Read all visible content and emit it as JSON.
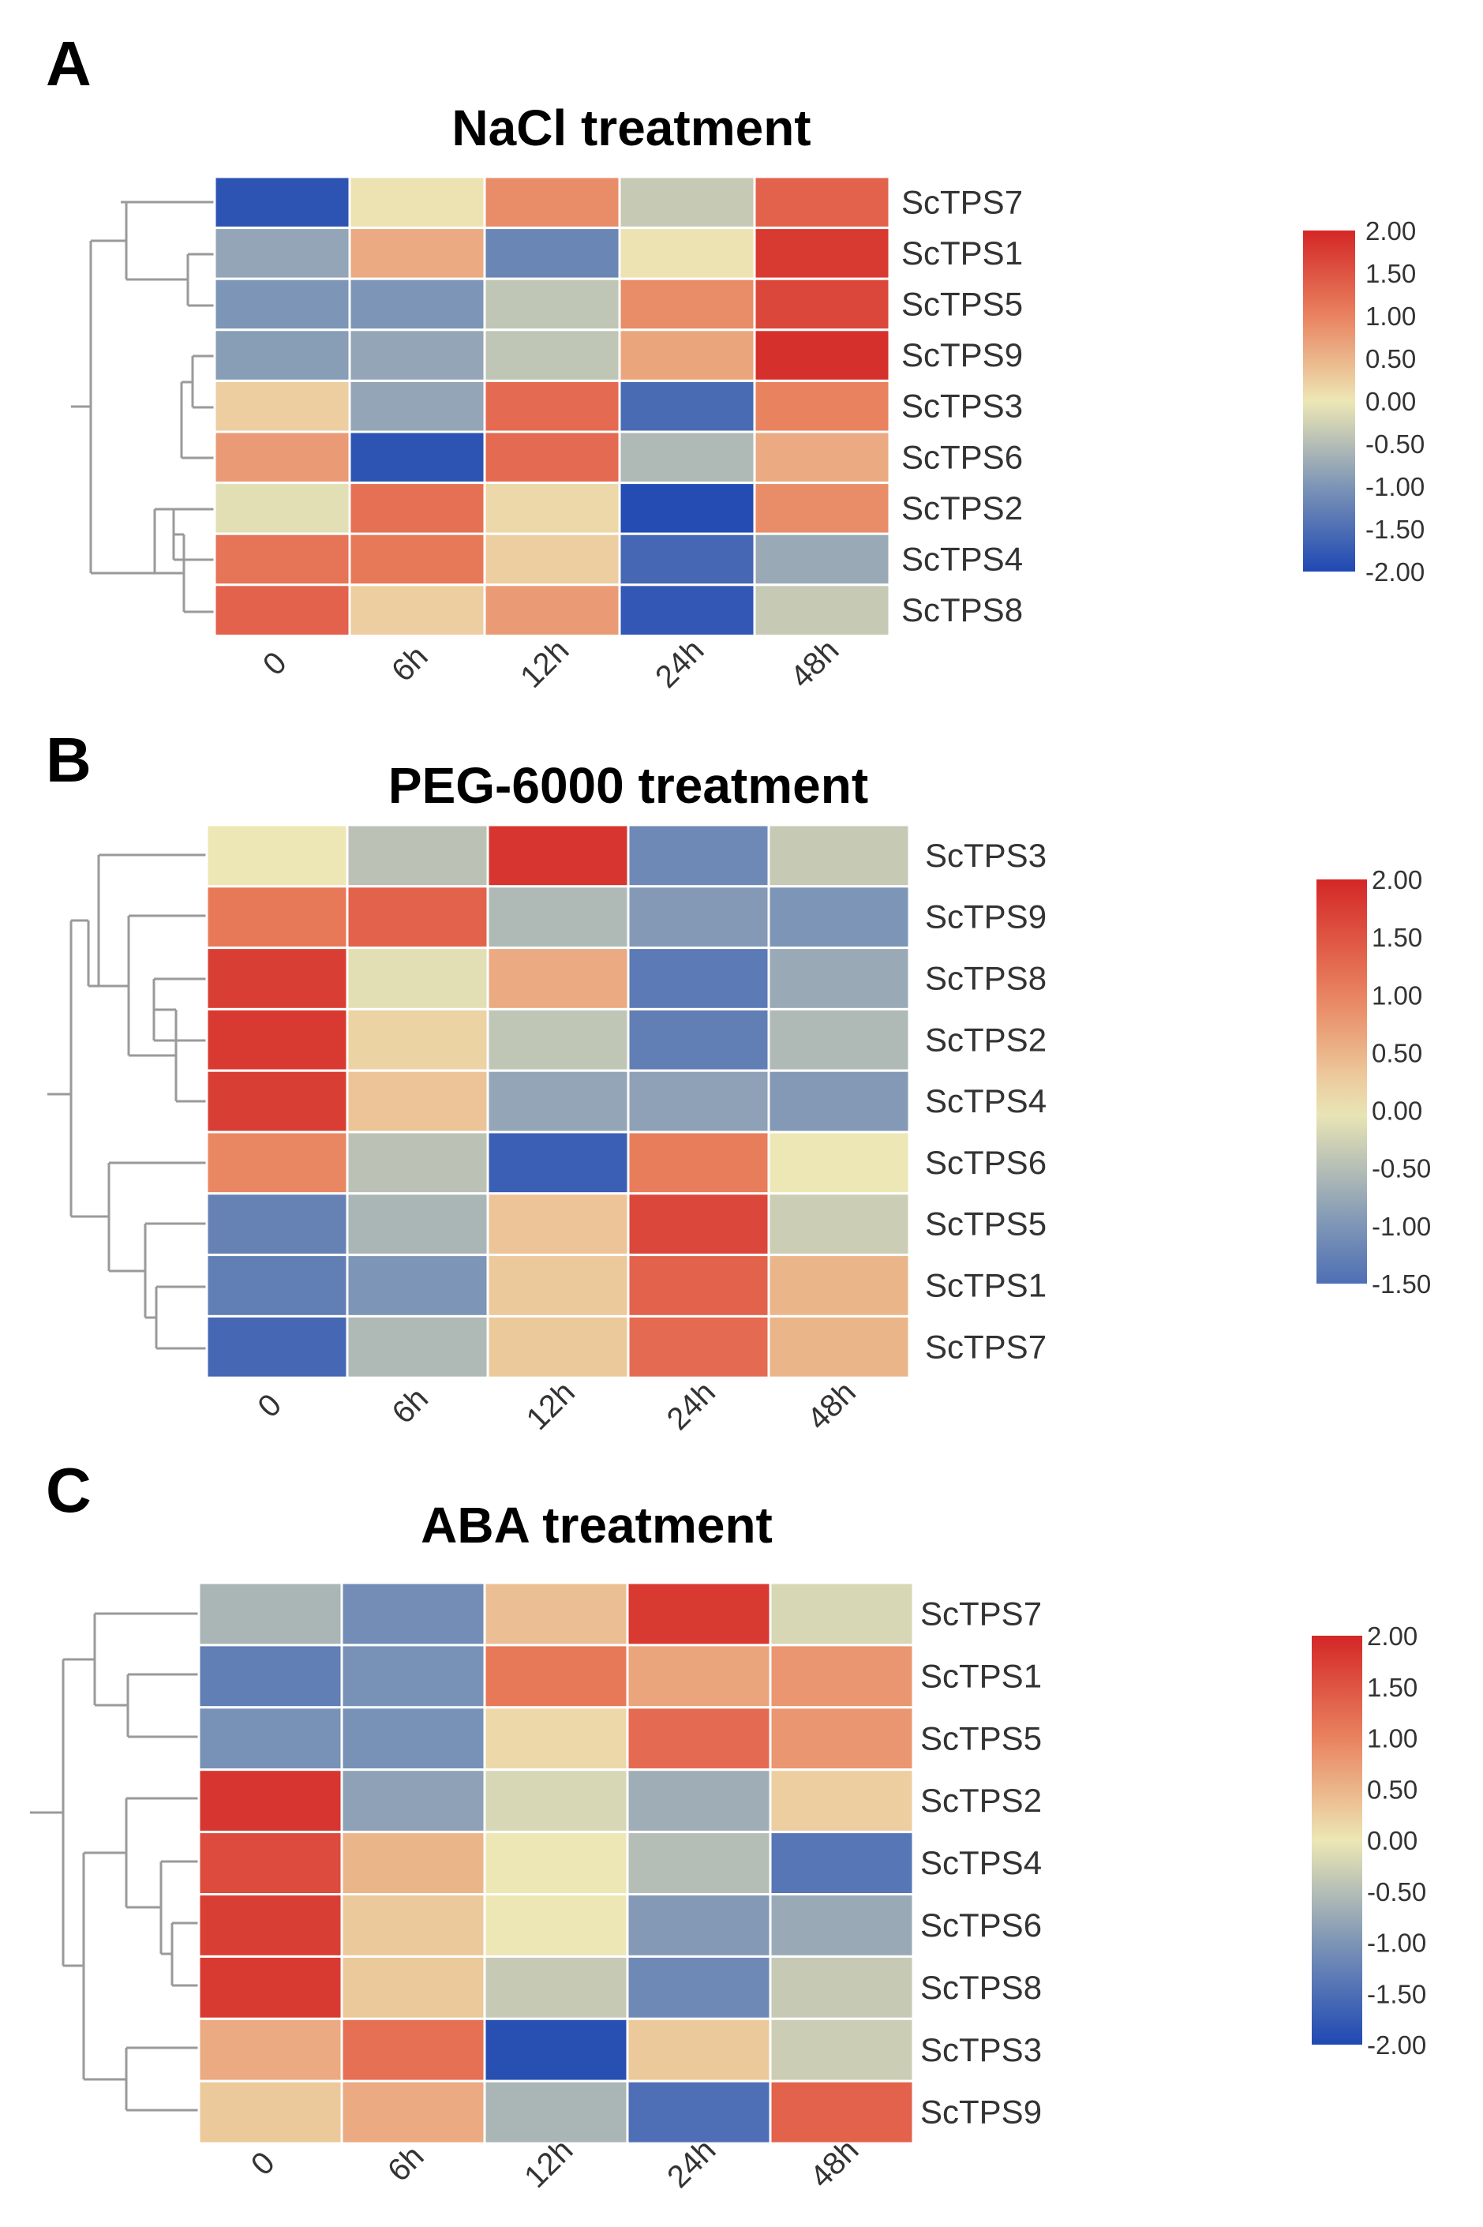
{
  "chart_data": [
    {
      "type": "heatmap",
      "panel": "A",
      "title": "NaCl treatment",
      "columns": [
        "0",
        "6h",
        "12h",
        "24h",
        "48h"
      ],
      "rows": [
        "ScTPS7",
        "ScTPS1",
        "ScTPS5",
        "ScTPS9",
        "ScTPS3",
        "ScTPS6",
        "ScTPS2",
        "ScTPS4",
        "ScTPS8"
      ],
      "values": [
        [
          -1.85,
          0.05,
          0.9,
          -0.35,
          1.35
        ],
        [
          -0.8,
          0.6,
          -1.2,
          0.05,
          1.8
        ],
        [
          -1.0,
          -1.0,
          -0.4,
          0.9,
          1.65
        ],
        [
          -0.9,
          -0.8,
          -0.4,
          0.65,
          1.9
        ],
        [
          0.25,
          -0.8,
          1.25,
          -1.55,
          1.0
        ],
        [
          0.75,
          -1.85,
          1.25,
          -0.55,
          0.6
        ],
        [
          -0.1,
          1.2,
          0.15,
          -1.95,
          0.9
        ],
        [
          1.15,
          1.1,
          0.25,
          -1.6,
          -0.75
        ],
        [
          1.35,
          0.25,
          0.75,
          -1.8,
          -0.35
        ]
      ],
      "legend": {
        "labels": [
          "2.00",
          "1.50",
          "1.00",
          "0.50",
          "0.00",
          "-0.50",
          "-1.00",
          "-1.50",
          "-2.00"
        ],
        "min": -2.0,
        "max": 2.0
      }
    },
    {
      "type": "heatmap",
      "panel": "B",
      "title": "PEG-6000 treatment",
      "columns": [
        "0",
        "6h",
        "12h",
        "24h",
        "48h"
      ],
      "rows": [
        "ScTPS3",
        "ScTPS9",
        "ScTPS8",
        "ScTPS2",
        "ScTPS4",
        "ScTPS6",
        "ScTPS5",
        "ScTPS1",
        "ScTPS7"
      ],
      "values": [
        [
          0.0,
          -0.45,
          1.85,
          -1.15,
          -0.35
        ],
        [
          1.1,
          1.35,
          -0.55,
          -0.95,
          -1.0
        ],
        [
          1.75,
          -0.1,
          0.6,
          -1.35,
          -0.75
        ],
        [
          1.8,
          0.2,
          -0.4,
          -1.3,
          -0.55
        ],
        [
          1.75,
          0.35,
          -0.8,
          -0.85,
          -0.95
        ],
        [
          0.95,
          -0.45,
          -1.7,
          1.05,
          0.0
        ],
        [
          -1.25,
          -0.6,
          0.35,
          1.65,
          -0.3
        ],
        [
          -1.3,
          -1.0,
          0.3,
          1.35,
          0.5
        ],
        [
          -1.6,
          -0.55,
          0.3,
          1.25,
          0.5
        ]
      ],
      "legend": {
        "labels": [
          "2.00",
          "1.50",
          "1.00",
          "0.50",
          "0.00",
          "-0.50",
          "-1.00",
          "-1.50"
        ],
        "min": -1.5,
        "max": 2.0
      }
    },
    {
      "type": "heatmap",
      "panel": "C",
      "title": "ABA treatment",
      "columns": [
        "0",
        "6h",
        "12h",
        "24h",
        "48h"
      ],
      "rows": [
        "ScTPS7",
        "ScTPS1",
        "ScTPS5",
        "ScTPS2",
        "ScTPS4",
        "ScTPS6",
        "ScTPS8",
        "ScTPS3",
        "ScTPS9"
      ],
      "values": [
        [
          -0.6,
          -1.1,
          0.4,
          1.8,
          -0.2
        ],
        [
          -1.3,
          -1.05,
          1.1,
          0.65,
          0.8
        ],
        [
          -1.05,
          -1.05,
          0.15,
          1.25,
          0.8
        ],
        [
          1.85,
          -0.85,
          -0.2,
          -0.7,
          0.25
        ],
        [
          1.6,
          0.5,
          0.0,
          -0.5,
          -1.4
        ],
        [
          1.75,
          0.3,
          0.0,
          -0.95,
          -0.75
        ],
        [
          1.8,
          0.3,
          -0.35,
          -1.15,
          -0.35
        ],
        [
          0.6,
          1.2,
          -1.9,
          0.3,
          -0.3
        ],
        [
          0.3,
          0.6,
          -0.6,
          -1.5,
          1.35
        ]
      ],
      "legend": {
        "labels": [
          "2.00",
          "1.50",
          "1.00",
          "0.50",
          "0.00",
          "-0.50",
          "-1.00",
          "-1.50",
          "-2.00"
        ],
        "min": -2.0,
        "max": 2.0
      }
    }
  ]
}
